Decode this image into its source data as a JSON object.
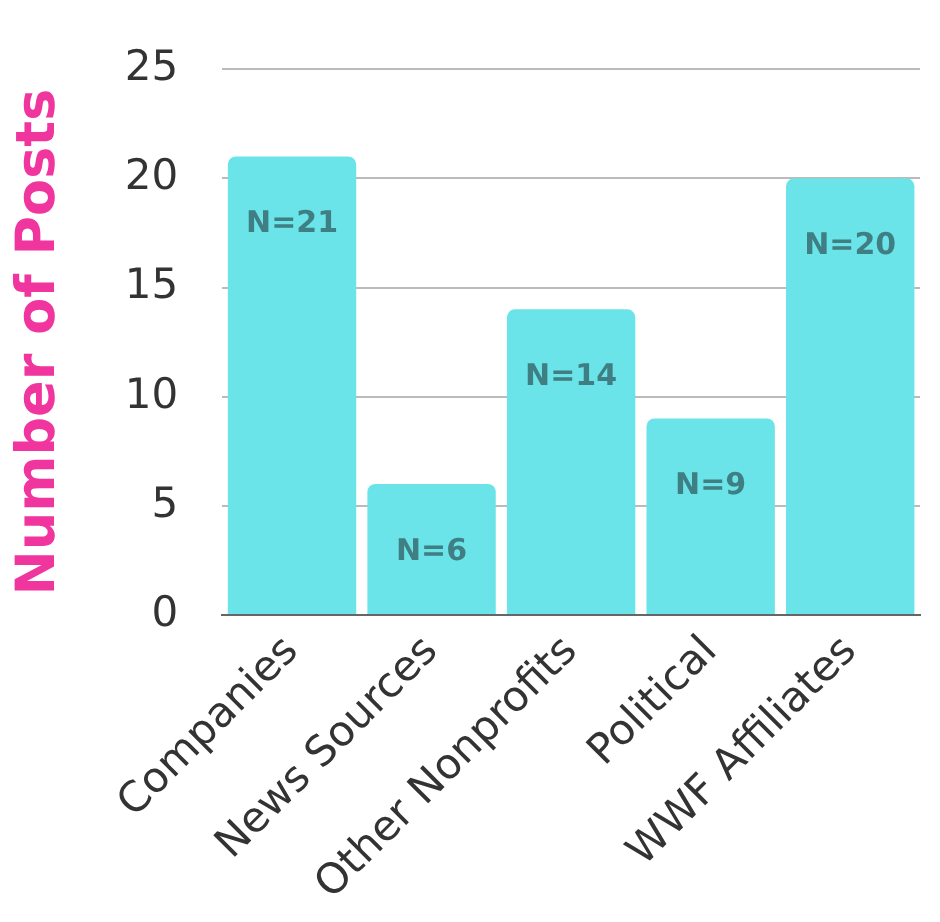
{
  "chart_data": {
    "type": "bar",
    "ylabel": "Number of Posts",
    "categories": [
      "Companies",
      "News Sources",
      "Other Nonprofits",
      "Political",
      "WWF Affiliates"
    ],
    "values": [
      21,
      6,
      14,
      9,
      20
    ],
    "value_labels": [
      "N=21",
      "N=6",
      "N=14",
      "N=9",
      "N=20"
    ],
    "color": "#6ae4e8",
    "ylim": [
      0,
      25
    ],
    "yticks": [
      0,
      5,
      10,
      15,
      20,
      25
    ],
    "grid": "y",
    "legend": false
  }
}
